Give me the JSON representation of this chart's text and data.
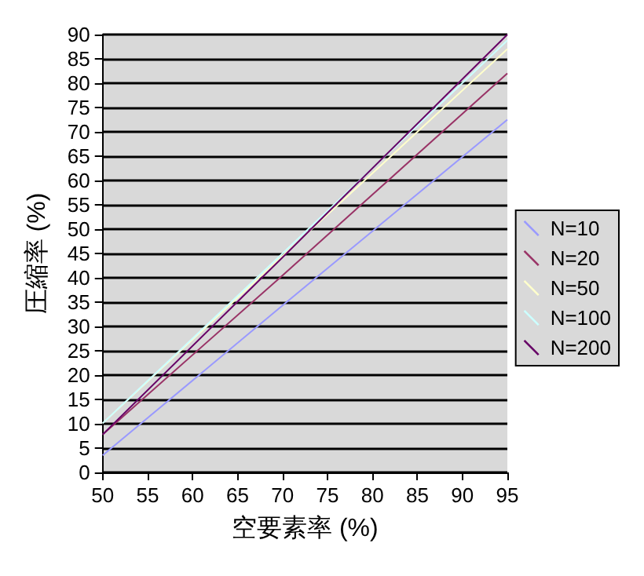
{
  "chart_data": {
    "type": "line",
    "xlabel": "空要素率 (%)",
    "ylabel": "圧縮率 (%)",
    "x": [
      50,
      70,
      95
    ],
    "series": [
      {
        "name": "N=10",
        "color": "#9999ff",
        "values": [
          3.5,
          34.3,
          72.5
        ]
      },
      {
        "name": "N=20",
        "color": "#993366",
        "values": [
          7.8,
          40.5,
          82
        ]
      },
      {
        "name": "N=50",
        "color": "#ffffcc",
        "values": [
          10.1,
          44.5,
          87
        ]
      },
      {
        "name": "N=100",
        "color": "#ccffff",
        "values": [
          10.1,
          45,
          88.8
        ]
      },
      {
        "name": "N=200",
        "color": "#660066",
        "values": [
          7.8,
          44.2,
          90
        ]
      }
    ],
    "xlim": [
      50,
      95
    ],
    "xticks": [
      50,
      55,
      60,
      65,
      70,
      75,
      80,
      85,
      90,
      95
    ],
    "ylim": [
      0,
      90
    ],
    "yticks": [
      0,
      5,
      10,
      15,
      20,
      25,
      30,
      35,
      40,
      45,
      50,
      55,
      60,
      65,
      70,
      75,
      80,
      85,
      90
    ],
    "grid": "y",
    "legend": "right",
    "marker": "none",
    "line_style": "solid"
  }
}
